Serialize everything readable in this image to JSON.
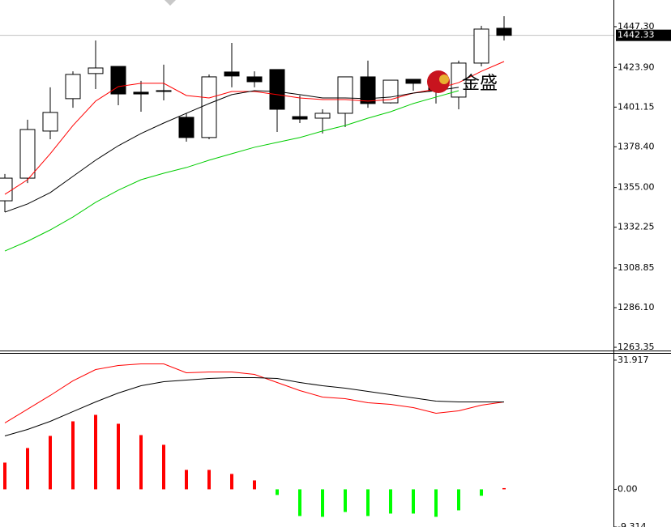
{
  "chart_data": [
    {
      "type": "candlestick",
      "open": [
        1347.4,
        1360.4,
        1387.4,
        1406.0,
        1420.4,
        1424.5,
        1409.7,
        1410.6,
        1395.3,
        1383.7,
        1421.3,
        1418.5,
        1422.7,
        1395.7,
        1394.8,
        1397.6,
        1418.5,
        1403.6,
        1417.1,
        1417.6,
        1406.9,
        1426.4,
        1446.4
      ],
      "high": [
        1362.8,
        1393.9,
        1412.5,
        1421.7,
        1439.4,
        1424.5,
        1416.2,
        1425.5,
        1397.6,
        1419.9,
        1438.0,
        1421.7,
        1422.7,
        1407.8,
        1399.9,
        1418.5,
        1427.8,
        1416.6,
        1417.1,
        1419.9,
        1427.8,
        1447.8,
        1453.3
      ],
      "low": [
        1340.9,
        1357.6,
        1382.7,
        1400.8,
        1411.5,
        1402.2,
        1398.5,
        1405.0,
        1381.3,
        1382.7,
        1412.5,
        1412.5,
        1386.9,
        1392.0,
        1386.0,
        1389.7,
        1400.8,
        1403.2,
        1410.6,
        1403.2,
        1399.9,
        1424.5,
        1439.4
      ],
      "close": [
        1360.4,
        1388.3,
        1398.1,
        1419.9,
        1423.6,
        1408.7,
        1408.7,
        1410.4,
        1383.7,
        1418.5,
        1419.0,
        1415.7,
        1399.9,
        1394.3,
        1397.6,
        1418.5,
        1403.2,
        1416.6,
        1414.8,
        1410.6,
        1426.4,
        1445.9,
        1442.33
      ],
      "lines": [
        {
          "color": "#ff0000",
          "values": [
            1351.1,
            1359.5,
            1374.4,
            1390.6,
            1404.6,
            1412.9,
            1414.8,
            1414.8,
            1407.8,
            1406.4,
            1410.1,
            1410.1,
            1408.3,
            1406.4,
            1405.5,
            1405.5,
            1404.6,
            1405.5,
            1409.2,
            1411.5,
            1415.2,
            1421.7,
            1427.3
          ]
        },
        {
          "color": "#000000",
          "values": [
            1340.9,
            1345.6,
            1352.1,
            1361.4,
            1370.7,
            1379.0,
            1386.0,
            1392.0,
            1397.6,
            1403.2,
            1408.3,
            1410.6,
            1410.1,
            1408.3,
            1406.4,
            1406.4,
            1406.0,
            1406.9,
            1409.2,
            1410.6,
            1412.5,
            null,
            null
          ]
        },
        {
          "color": "#00cc00",
          "values": [
            1318.6,
            1324.2,
            1330.7,
            1338.1,
            1346.5,
            1353.5,
            1359.5,
            1363.2,
            1366.5,
            1370.7,
            1374.4,
            1378.1,
            1380.9,
            1383.7,
            1387.4,
            1390.6,
            1394.8,
            1398.5,
            1403.2,
            1406.9,
            1410.6,
            null,
            null
          ]
        }
      ],
      "current_price": 1442.33,
      "watermark": "金盛",
      "ylim": [
        1261.5,
        1462.6
      ],
      "yticks": [
        {
          "value": 1447.3,
          "label": "1447.30"
        },
        {
          "value": 1423.9,
          "label": "1423.90"
        },
        {
          "value": 1401.15,
          "label": "1401.15"
        },
        {
          "value": 1378.4,
          "label": "1378.40"
        },
        {
          "value": 1355.0,
          "label": "1355.00"
        },
        {
          "value": 1332.25,
          "label": "1332.25"
        },
        {
          "value": 1308.85,
          "label": "1308.85"
        },
        {
          "value": 1286.1,
          "label": "1286.10"
        },
        {
          "value": 1263.35,
          "label": "1263.35"
        }
      ]
    },
    {
      "type": "macd",
      "values": [
        6.6,
        10.2,
        13.2,
        16.8,
        18.4,
        16.2,
        13.4,
        11.0,
        4.8,
        4.8,
        3.8,
        2.2,
        -1.4,
        -6.6,
        -6.8,
        -5.6,
        -6.6,
        -6.0,
        -6.0,
        -6.8,
        -5.2,
        -1.6,
        0.3
      ],
      "up_color": "#ff0000",
      "down_color": "#00ff00",
      "lines": [
        {
          "color": "#ff0000",
          "values": [
            16.4,
            19.8,
            23.2,
            26.8,
            29.6,
            30.6,
            31.0,
            31.0,
            28.8,
            29.0,
            29.0,
            28.4,
            26.4,
            24.4,
            22.8,
            22.4,
            21.4,
            21.0,
            20.2,
            18.8,
            19.4,
            20.8,
            21.6
          ]
        },
        {
          "color": "#000000",
          "values": [
            13.2,
            14.8,
            16.8,
            19.2,
            21.6,
            23.8,
            25.6,
            26.6,
            27.0,
            27.4,
            27.6,
            27.6,
            27.4,
            26.4,
            25.6,
            25.0,
            24.2,
            23.4,
            22.6,
            21.8,
            21.6,
            21.6,
            21.6
          ]
        }
      ],
      "ylim": [
        -9.314,
        33.5
      ],
      "yticks": [
        31.917,
        {
          "value": 0,
          "label": "0.00"
        },
        -9.314
      ]
    }
  ]
}
